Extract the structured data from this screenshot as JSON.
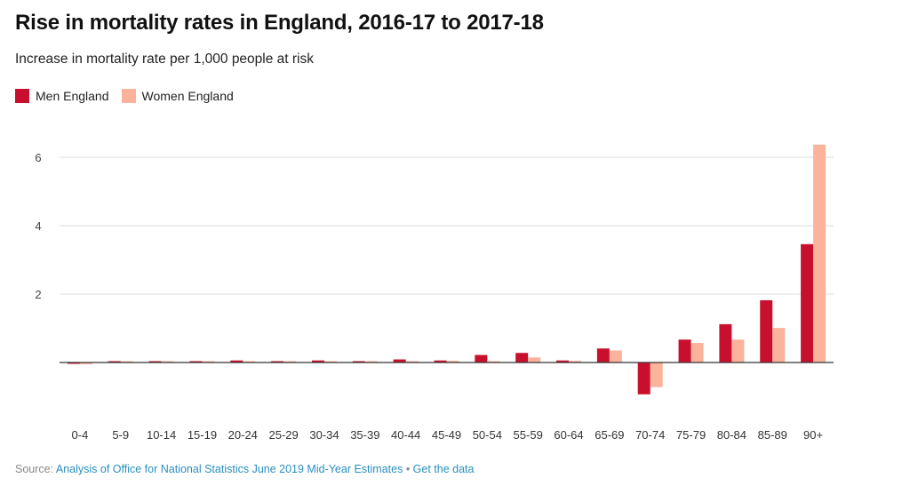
{
  "title": "Rise in mortality rates in England, 2016-17 to 2017-18",
  "subtitle": "Increase in mortality rate per 1,000 people at risk",
  "source": {
    "prefix": "Source: ",
    "link_text": "Analysis of Office for National Statistics June 2019 Mid-Year Estimates",
    "separator": " • ",
    "get_data": "Get the data"
  },
  "colors": {
    "men": "#c8102e",
    "women": "#fbb39c",
    "grid": "#dddddd",
    "axis": "#333333"
  },
  "chart_data": {
    "type": "bar",
    "title": "Rise in mortality rates in England, 2016-17 to 2017-18",
    "subtitle": "Increase in mortality rate per 1,000 people at risk",
    "xlabel": "",
    "ylabel": "",
    "ylim": [
      -1.3,
      7
    ],
    "yticks": [
      2,
      4,
      6
    ],
    "grid": true,
    "legend_position": "top-left",
    "categories": [
      "0-4",
      "5-9",
      "10-14",
      "15-19",
      "20-24",
      "25-29",
      "30-34",
      "35-39",
      "40-44",
      "45-49",
      "50-54",
      "55-59",
      "60-64",
      "65-69",
      "70-74",
      "75-79",
      "80-84",
      "85-89",
      "90+"
    ],
    "series": [
      {
        "name": "Men England",
        "values": [
          -0.03,
          0.02,
          0.01,
          0.02,
          0.06,
          0.02,
          0.06,
          0.03,
          0.09,
          0.06,
          0.22,
          0.28,
          0.06,
          0.41,
          -0.93,
          0.67,
          1.12,
          1.82,
          3.46
        ]
      },
      {
        "name": "Women England",
        "values": [
          -0.05,
          0.0,
          0.0,
          0.01,
          0.02,
          0.01,
          0.02,
          0.01,
          0.01,
          0.05,
          0.01,
          0.15,
          0.05,
          0.35,
          -0.72,
          0.57,
          0.67,
          1.01,
          6.37
        ]
      }
    ]
  }
}
